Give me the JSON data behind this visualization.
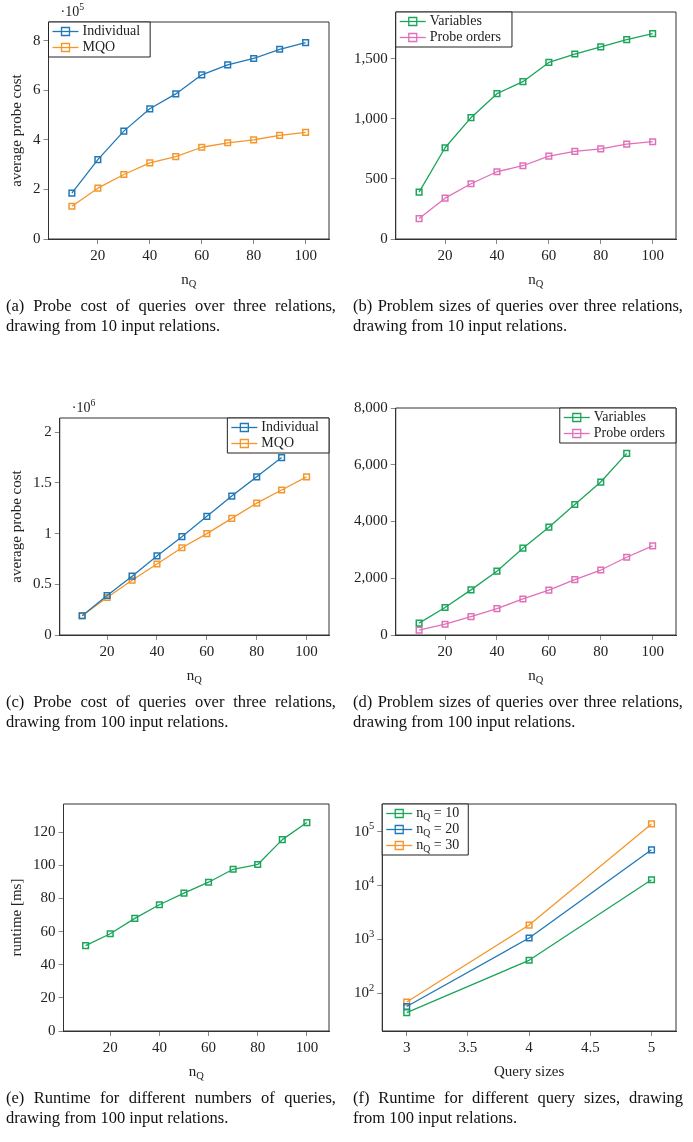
{
  "chart_data": [
    {
      "type": "line",
      "title": "(a) Probe cost of queries over three relations, drawing from 10 input relations.",
      "xlabel": "n$_{Q}$",
      "ylabel": "average probe cost",
      "annotations": [
        "·10$^{5}$"
      ],
      "x": [
        10,
        20,
        30,
        40,
        50,
        60,
        70,
        80,
        90,
        100
      ],
      "xlim": [
        1,
        109
      ],
      "xticks": [
        20,
        40,
        60,
        80,
        100
      ],
      "ylim": [
        0,
        8.75
      ],
      "yticks": [
        0,
        2,
        4,
        6,
        8
      ],
      "legend": "top left",
      "marker": "square",
      "series": [
        {
          "name": "Individual",
          "color": "#2178b8",
          "values": [
            1.85,
            3.2,
            4.35,
            5.25,
            5.85,
            6.62,
            7.02,
            7.28,
            7.65,
            7.92
          ]
        },
        {
          "name": "MQO",
          "color": "#f5962a",
          "values": [
            1.32,
            2.05,
            2.6,
            3.07,
            3.32,
            3.7,
            3.88,
            4.0,
            4.18,
            4.3
          ]
        }
      ]
    },
    {
      "type": "line",
      "title": "(b) Problem sizes of queries over three relations, drawing from 10 input relations.",
      "xlabel": "n$_{Q}$",
      "x": [
        10,
        20,
        30,
        40,
        50,
        60,
        70,
        80,
        90,
        100
      ],
      "xlim": [
        1,
        109
      ],
      "xticks": [
        20,
        40,
        60,
        80,
        100
      ],
      "ylim": [
        0,
        1890
      ],
      "yticks": [
        0,
        500,
        {
          "value": 1000,
          "label": "1,000"
        },
        {
          "value": 1500,
          "label": "1,500"
        }
      ],
      "legend": "top left",
      "marker": "square",
      "series": [
        {
          "name": "Variables",
          "color": "#1aa55a",
          "values": [
            390,
            760,
            1010,
            1210,
            1310,
            1470,
            1540,
            1600,
            1660,
            1710
          ]
        },
        {
          "name": "Probe orders",
          "color": "#e070b8",
          "values": [
            170,
            340,
            460,
            560,
            610,
            690,
            730,
            750,
            790,
            810
          ]
        }
      ]
    },
    {
      "type": "line",
      "title": "(c) Probe cost of queries over three relations, drawing from 100 input relations.",
      "xlabel": "n$_{Q}$",
      "ylabel": "average probe cost",
      "annotations": [
        "·10$^{6}$"
      ],
      "x": [
        10,
        20,
        30,
        40,
        50,
        60,
        70,
        80,
        90,
        100
      ],
      "xlim": [
        1,
        109
      ],
      "xticks": [
        20,
        40,
        60,
        80,
        100
      ],
      "ylim": [
        0,
        2.14
      ],
      "yticks": [
        0,
        0.5,
        1,
        1.5,
        2
      ],
      "legend": "top right",
      "marker": "square",
      "series": [
        {
          "name": "Individual",
          "color": "#2178b8",
          "values": [
            0.19,
            0.39,
            0.58,
            0.78,
            0.97,
            1.17,
            1.37,
            1.56,
            1.75,
            null
          ]
        },
        {
          "name": "MQO",
          "color": "#f5962a",
          "values": [
            0.19,
            0.37,
            0.54,
            0.7,
            0.86,
            1.0,
            1.15,
            1.3,
            1.43,
            1.56
          ]
        }
      ]
    },
    {
      "type": "line",
      "title": "(d) Problem sizes of queries over three relations, drawing from 100 input relations.",
      "xlabel": "n$_{Q}$",
      "x": [
        10,
        20,
        30,
        40,
        50,
        60,
        70,
        80,
        90,
        100
      ],
      "xlim": [
        1,
        109
      ],
      "xticks": [
        20,
        40,
        60,
        80,
        100
      ],
      "ylim": [
        0,
        8000
      ],
      "yticks": [
        0,
        {
          "value": 2000,
          "label": "2,000"
        },
        {
          "value": 4000,
          "label": "4,000"
        },
        {
          "value": 6000,
          "label": "6,000"
        },
        {
          "value": 8000,
          "label": "8,000"
        }
      ],
      "legend": "top right",
      "marker": "square",
      "series": [
        {
          "name": "Variables",
          "color": "#1aa55a",
          "values": [
            420,
            970,
            1590,
            2250,
            3060,
            3800,
            4600,
            5390,
            6400,
            null
          ]
        },
        {
          "name": "Probe orders",
          "color": "#e070b8",
          "values": [
            170,
            380,
            650,
            930,
            1270,
            1580,
            1950,
            2290,
            2740,
            3140
          ]
        }
      ]
    },
    {
      "type": "line",
      "title": "(e) Runtime for different numbers of queries, drawing from 100 input relations.",
      "xlabel": "n$_{Q}$",
      "ylabel": "runtime [ms]",
      "x": [
        10,
        20,
        30,
        40,
        50,
        60,
        70,
        80,
        90,
        100
      ],
      "xlim": [
        1,
        109
      ],
      "xticks": [
        20,
        40,
        60,
        80,
        100
      ],
      "ylim": [
        0,
        137
      ],
      "yticks": [
        0,
        20,
        40,
        60,
        80,
        100,
        120
      ],
      "marker": "square",
      "series": [
        {
          "color": "#1aa55a",
          "values": [
            51.5,
            58.7,
            68,
            76.2,
            83.2,
            89.8,
            97.6,
            100.5,
            115.5,
            125.8
          ]
        }
      ]
    },
    {
      "type": "line",
      "title": "(f) Runtime for different query sizes, drawing from 100 input relations.",
      "xlabel": "Query sizes",
      "x": [
        3,
        4,
        5
      ],
      "xlim": [
        2.8,
        5.2
      ],
      "xticks": [
        3,
        3.5,
        4,
        4.5,
        5
      ],
      "log": "y",
      "ylim": [
        20,
        330000
      ],
      "yticks": [
        {
          "value": 100,
          "label": "10$^{2}$"
        },
        {
          "value": 1000,
          "label": "10$^{3}$"
        },
        {
          "value": 10000,
          "label": "10$^{4}$"
        },
        {
          "value": 100000,
          "label": "10$^{5}$"
        }
      ],
      "legend": "top left",
      "marker": "square",
      "series": [
        {
          "name": "n$_{Q}$ = 10",
          "color": "#1aa55a",
          "values": [
            44,
            412,
            12900
          ]
        },
        {
          "name": "n$_{Q}$ = 20",
          "color": "#2178b8",
          "values": [
            57,
            1070,
            46500
          ]
        },
        {
          "name": "n$_{Q}$ = 30",
          "color": "#f5962a",
          "values": [
            69,
            1860,
            141000
          ]
        }
      ]
    }
  ]
}
